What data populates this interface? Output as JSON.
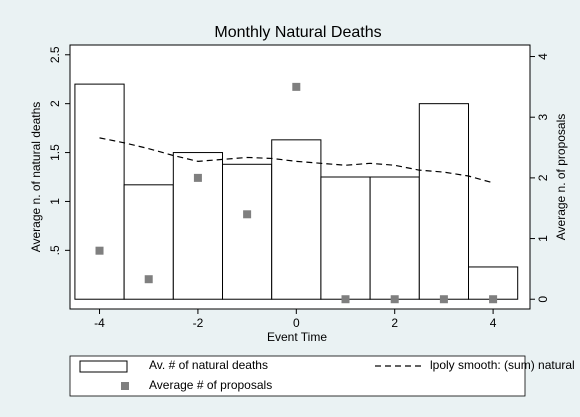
{
  "chart_data": {
    "type": "combo",
    "title": "Monthly Natural Deaths",
    "xlabel": "Event Time",
    "ylabel": "Average n. of natural deaths",
    "y2label": "Average n. of proposals",
    "xlim": [
      -4.6,
      4.75
    ],
    "xticks": [
      -4,
      -2,
      0,
      2,
      4
    ],
    "ylim": [
      -0.1,
      2.6
    ],
    "yticks": [
      {
        "value": 0.5,
        "label": ".5"
      },
      1,
      1.5,
      2,
      2.5
    ],
    "y2lim": [
      -0.161,
      4.19
    ],
    "y2ticks": [
      0,
      1,
      2,
      3,
      4
    ],
    "series": [
      {
        "name": "Av. # of natural deaths",
        "type": "bar",
        "color": "#ffffff",
        "x": [
          -4,
          -3,
          -2,
          -1,
          0,
          1,
          2,
          3,
          4
        ],
        "values": [
          2.2,
          1.17,
          1.5,
          1.38,
          1.63,
          1.25,
          1.25,
          2.0,
          0.33
        ]
      },
      {
        "name": "lpoly smooth: (sum) natural",
        "type": "line",
        "color": "#000000",
        "x": [
          -4,
          -3.5,
          -3,
          -2.5,
          -2,
          -1.5,
          -1,
          -0.5,
          0,
          0.5,
          1,
          1.5,
          2,
          2.5,
          3,
          3.5,
          4
        ],
        "values": [
          1.65,
          1.6,
          1.54,
          1.47,
          1.41,
          1.43,
          1.45,
          1.44,
          1.41,
          1.39,
          1.37,
          1.39,
          1.37,
          1.32,
          1.3,
          1.26,
          1.19
        ]
      },
      {
        "name": "Average # of proposals",
        "type": "scatter",
        "axis": "y2",
        "color": "#7f7f7f",
        "x": [
          -4,
          -3,
          -2,
          -1,
          0,
          1,
          2,
          3,
          4
        ],
        "values": [
          0.8,
          0.33,
          2.0,
          1.4,
          3.5,
          0,
          0,
          0,
          0
        ]
      }
    ]
  }
}
